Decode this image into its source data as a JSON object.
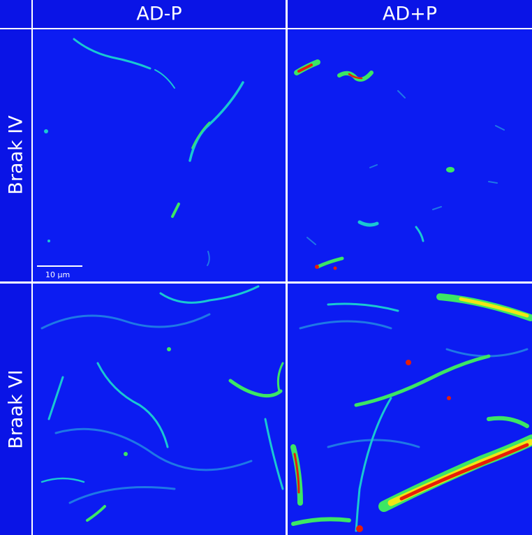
{
  "columns": [
    "AD-P",
    "AD+P"
  ],
  "rows": [
    "Braak IV",
    "Braak VI"
  ],
  "scale_bar": "10 µm"
}
